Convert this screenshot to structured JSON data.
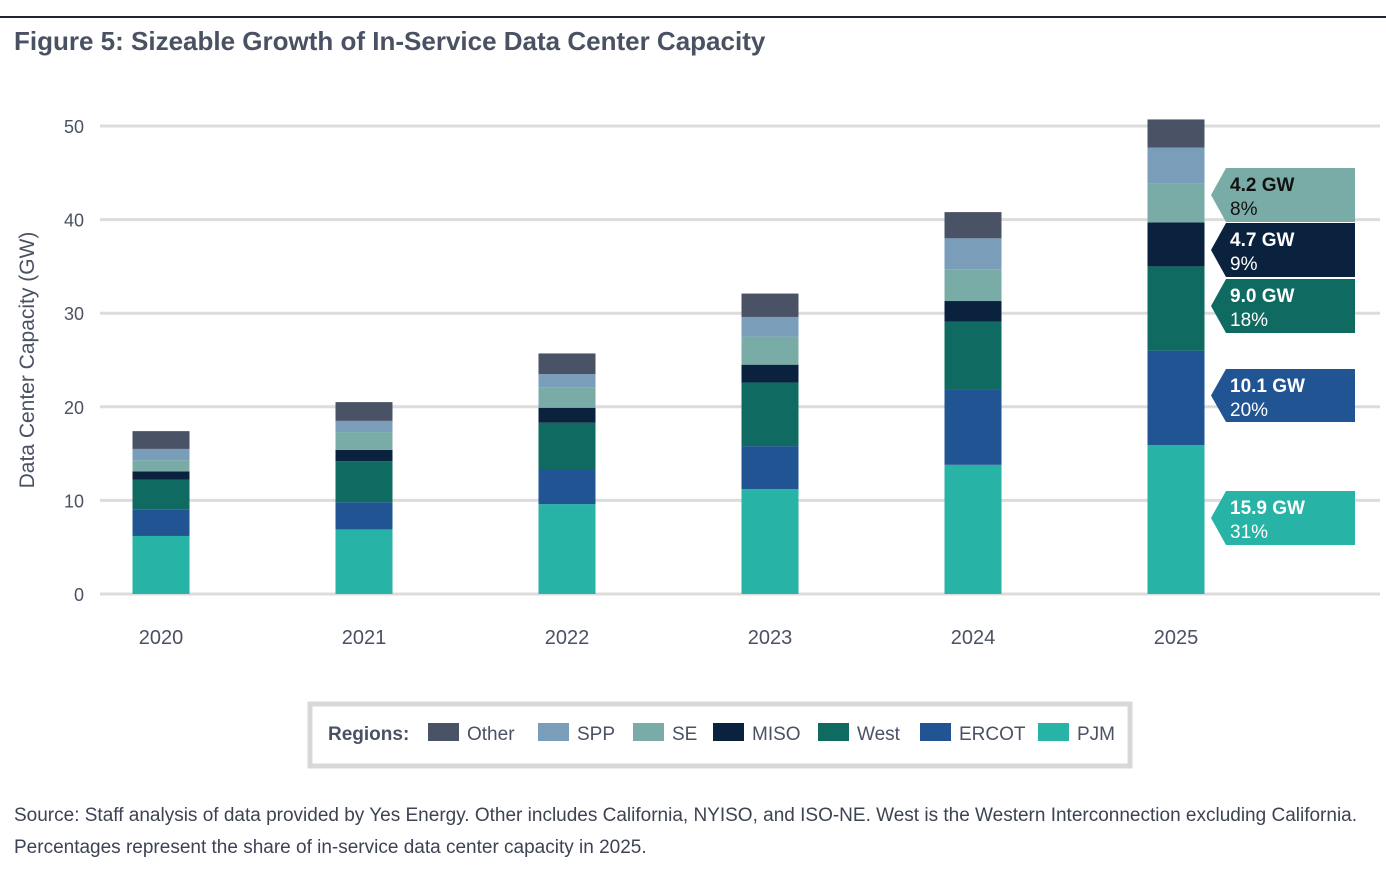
{
  "title": "Figure 5: Sizeable Growth of In-Service Data Center Capacity",
  "source": "Source: Staff analysis of data provided by Yes Energy. Other includes California, NYISO, and ISO-NE. West is the Western Interconnection excluding California. Percentages represent the share of in-service data center capacity in 2025.",
  "chart_data": {
    "type": "bar",
    "stacked": true,
    "title": "Figure 5: Sizeable Growth of In-Service Data Center Capacity",
    "xlabel": "",
    "ylabel": "Data Center Capacity (GW)",
    "ylim": [
      0,
      50
    ],
    "yticks": [
      0,
      10,
      20,
      30,
      40,
      50
    ],
    "grid": true,
    "categories": [
      "2020",
      "2021",
      "2022",
      "2023",
      "2024",
      "2025"
    ],
    "legend_title": "Regions:",
    "legend_position": "bottom",
    "series": [
      {
        "name": "PJM",
        "color": "#27b3a6",
        "values": [
          6.2,
          6.9,
          9.6,
          11.2,
          13.8,
          15.9
        ]
      },
      {
        "name": "ERCOT",
        "color": "#215493",
        "values": [
          2.8,
          2.9,
          3.7,
          4.6,
          8.0,
          10.1
        ]
      },
      {
        "name": "West",
        "color": "#0f6b62",
        "values": [
          3.2,
          4.4,
          5.0,
          6.8,
          7.3,
          9.0
        ]
      },
      {
        "name": "MISO",
        "color": "#0a223d",
        "values": [
          0.9,
          1.2,
          1.6,
          1.9,
          2.2,
          4.7
        ]
      },
      {
        "name": "SE",
        "color": "#7aaca7",
        "values": [
          1.2,
          1.9,
          2.2,
          3.0,
          3.4,
          4.2
        ]
      },
      {
        "name": "SPP",
        "color": "#7a9db9",
        "values": [
          1.2,
          1.2,
          1.4,
          2.1,
          3.3,
          3.8
        ]
      },
      {
        "name": "Other",
        "color": "#4a5366",
        "values": [
          1.9,
          2.0,
          2.2,
          2.5,
          2.8,
          3.0
        ]
      }
    ],
    "legend_order": [
      "Other",
      "SPP",
      "SE",
      "MISO",
      "West",
      "ERCOT",
      "PJM"
    ],
    "annotations": [
      {
        "series": "SE",
        "label": "4.2 GW",
        "pct": "8%",
        "text_color": "#111111"
      },
      {
        "series": "MISO",
        "label": "4.7 GW",
        "pct": "9%",
        "text_color": "#ffffff"
      },
      {
        "series": "West",
        "label": "9.0 GW",
        "pct": "18%",
        "text_color": "#ffffff"
      },
      {
        "series": "ERCOT",
        "label": "10.1 GW",
        "pct": "20%",
        "text_color": "#ffffff"
      },
      {
        "series": "PJM",
        "label": "15.9 GW",
        "pct": "31%",
        "text_color": "#ffffff"
      }
    ]
  }
}
